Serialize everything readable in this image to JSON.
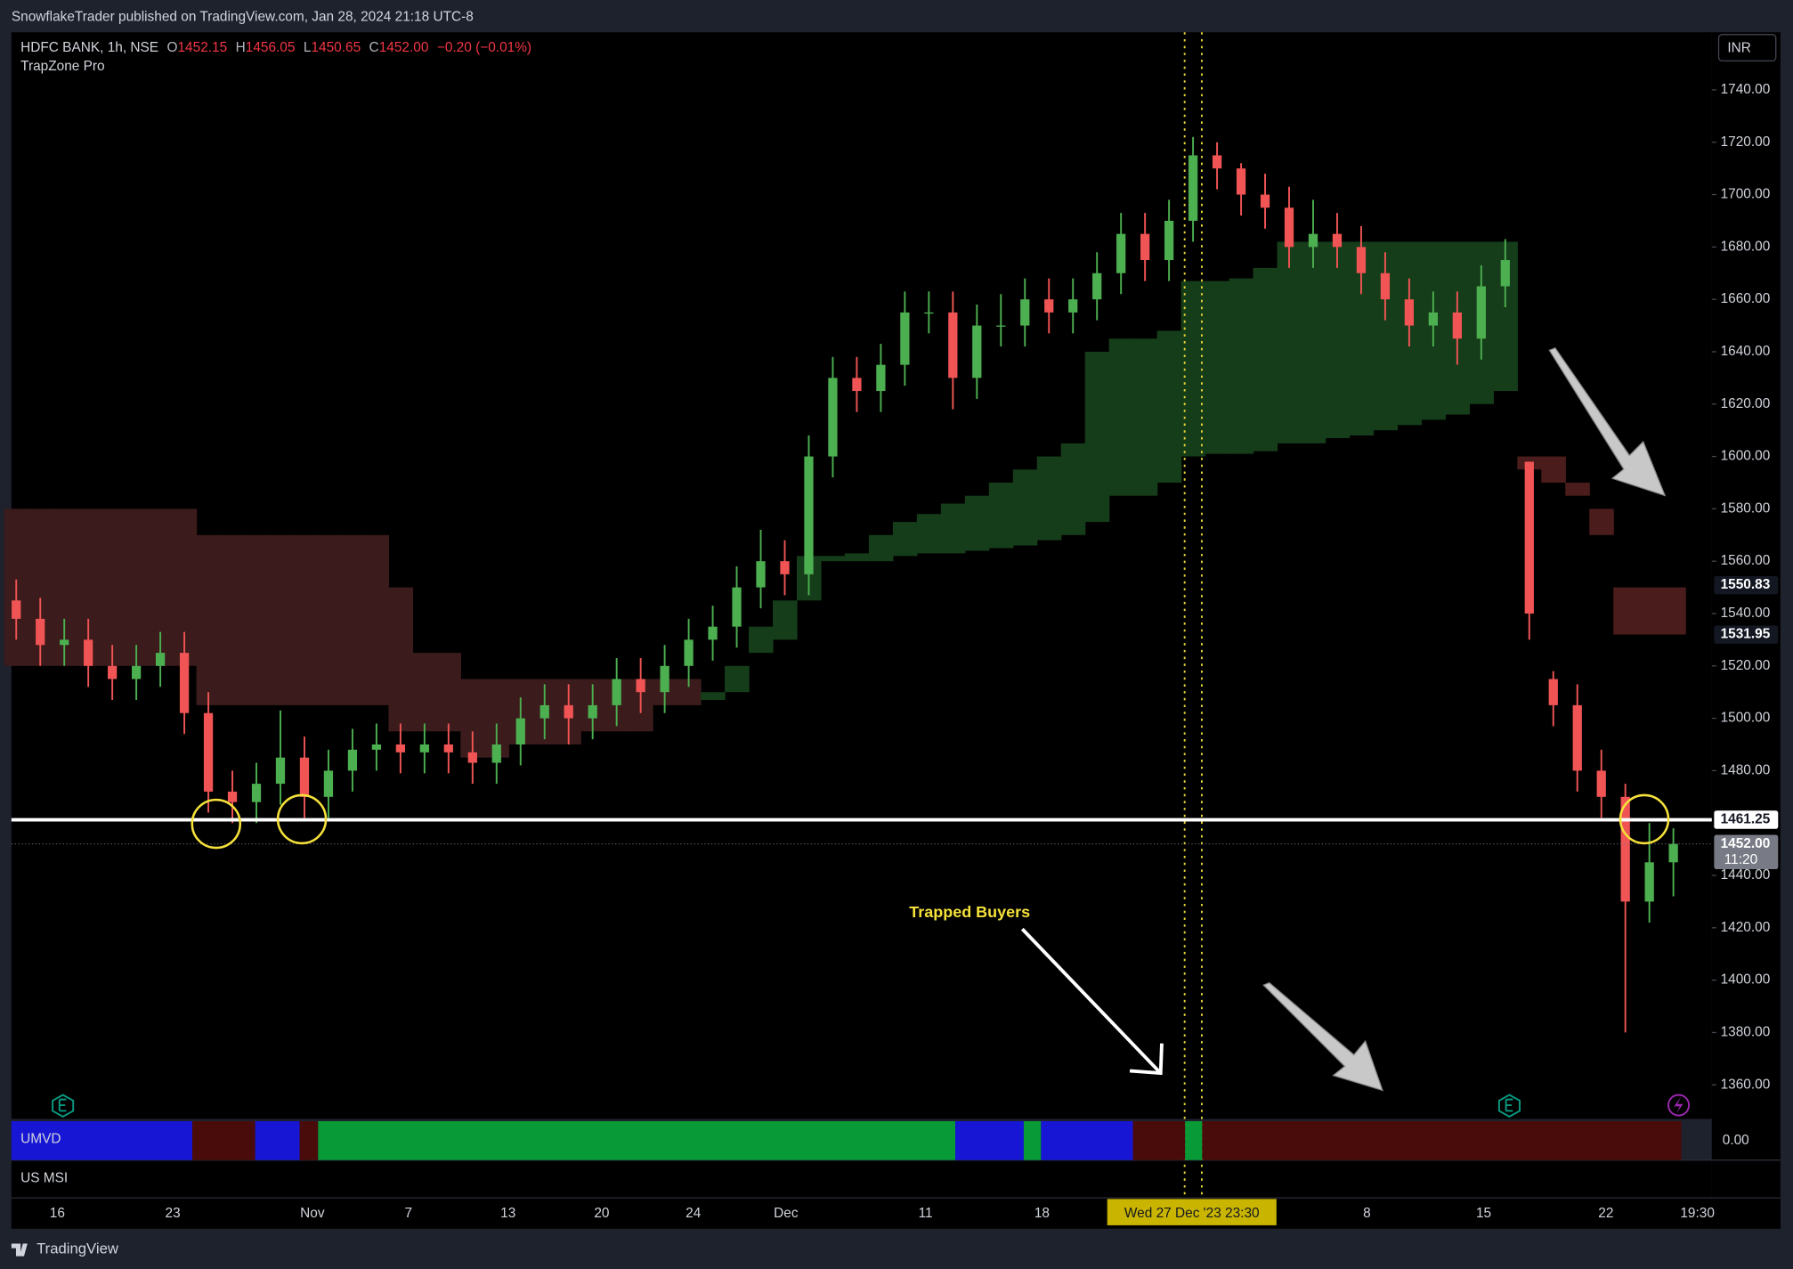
{
  "header": {
    "text": "SnowflakeTrader published on TradingView.com, Jan 28, 2024 21:18 UTC-8"
  },
  "chart_data": {
    "type": "candlestick",
    "legend": {
      "symbol": "HDFC BANK, 1h, NSE",
      "open_label": "O",
      "open": 1452.15,
      "high_label": "H",
      "high": 1456.05,
      "low_label": "L",
      "low": 1450.65,
      "close_label": "C",
      "close": {
        "value": 1452,
        "label": "1452.00"
      },
      "change": "−0.20 (−0.01%)",
      "indicator": "TrapZone Pro"
    },
    "currency": "INR",
    "colors": {
      "up": "#4caf50",
      "down": "#f05454"
    },
    "xlim": [
      -0.2,
      70.6
    ],
    "ylim": [
      1347,
      1762
    ],
    "grid": false,
    "xticks": [
      {
        "value": 1.71,
        "label": "16"
      },
      {
        "value": 6.52,
        "label": "23"
      },
      {
        "value": 12.33,
        "label": "Nov"
      },
      {
        "value": 16.33,
        "label": "7"
      },
      {
        "value": 20.48,
        "label": "13"
      },
      {
        "value": 24.38,
        "label": "20"
      },
      {
        "value": 28.19,
        "label": "24"
      },
      {
        "value": 32.05,
        "label": "Dec"
      },
      {
        "value": 37.86,
        "label": "11"
      },
      {
        "value": 42.71,
        "label": "18"
      },
      {
        "value": 56.24,
        "label": "8"
      },
      {
        "value": 61.1,
        "label": "15"
      },
      {
        "value": 66.19,
        "label": "22"
      },
      {
        "value": 70.0,
        "label": "19:30"
      }
    ],
    "cursor_tick": {
      "value": 48.95,
      "label": "Wed 27 Dec '23 23:30"
    },
    "yticks": [
      {
        "value": 1360,
        "label": "1360.00"
      },
      {
        "value": 1380,
        "label": "1380.00"
      },
      {
        "value": 1400,
        "label": "1400.00"
      },
      {
        "value": 1420,
        "label": "1420.00"
      },
      {
        "value": 1440,
        "label": "1440.00"
      },
      {
        "value": 1480,
        "label": "1480.00"
      },
      {
        "value": 1500,
        "label": "1500.00"
      },
      {
        "value": 1520,
        "label": "1520.00"
      },
      {
        "value": 1540,
        "label": "1540.00"
      },
      {
        "value": 1560,
        "label": "1560.00"
      },
      {
        "value": 1580,
        "label": "1580.00"
      },
      {
        "value": 1600,
        "label": "1600.00"
      },
      {
        "value": 1620,
        "label": "1620.00"
      },
      {
        "value": 1640,
        "label": "1640.00"
      },
      {
        "value": 1660,
        "label": "1660.00"
      },
      {
        "value": 1680,
        "label": "1680.00"
      },
      {
        "value": 1700,
        "label": "1700.00"
      },
      {
        "value": 1720,
        "label": "1720.00"
      },
      {
        "value": 1740,
        "label": "1740.00"
      }
    ],
    "open": [
      1545,
      1538,
      1528,
      1530,
      1520,
      1515,
      1520,
      1525,
      1502,
      1472,
      1468,
      1475,
      1485,
      1470,
      1480,
      1488,
      1490,
      1487,
      1490,
      1487,
      1483,
      1490,
      1500,
      1505,
      1500,
      1505,
      1515,
      1510,
      1520,
      1530,
      1535,
      1550,
      1560,
      1555,
      1600,
      1630,
      1625,
      1635,
      1655,
      1655,
      1630,
      1650,
      1650,
      1660,
      1655,
      1660,
      1670,
      1685,
      1675,
      1690,
      1715,
      1710,
      1700,
      1695,
      1680,
      1685,
      1680,
      1670,
      1660,
      1650,
      1655,
      1645,
      1665,
      1598,
      1515,
      1505,
      1480,
      1470,
      1430,
      1445
    ],
    "high": [
      1553,
      1546,
      1538,
      1538,
      1528,
      1528,
      1533,
      1533,
      1510,
      1480,
      1483,
      1503,
      1493,
      1488,
      1496,
      1498,
      1498,
      1498,
      1498,
      1495,
      1498,
      1508,
      1513,
      1513,
      1513,
      1523,
      1523,
      1528,
      1538,
      1543,
      1558,
      1572,
      1568,
      1608,
      1638,
      1638,
      1643,
      1663,
      1663,
      1663,
      1658,
      1662,
      1668,
      1668,
      1668,
      1678,
      1693,
      1693,
      1698,
      1722,
      1720,
      1712,
      1708,
      1703,
      1698,
      1693,
      1688,
      1678,
      1668,
      1663,
      1663,
      1673,
      1683,
      1598,
      1518,
      1513,
      1488,
      1475,
      1460,
      1458
    ],
    "low": [
      1530,
      1520,
      1520,
      1512,
      1507,
      1507,
      1512,
      1494,
      1464,
      1460,
      1460,
      1467,
      1462,
      1462,
      1472,
      1480,
      1479,
      1479,
      1479,
      1475,
      1475,
      1482,
      1492,
      1490,
      1492,
      1497,
      1502,
      1502,
      1512,
      1522,
      1527,
      1542,
      1547,
      1547,
      1592,
      1617,
      1617,
      1627,
      1647,
      1618,
      1622,
      1642,
      1642,
      1647,
      1647,
      1652,
      1662,
      1667,
      1667,
      1682,
      1702,
      1692,
      1687,
      1672,
      1672,
      1672,
      1662,
      1652,
      1642,
      1642,
      1635,
      1637,
      1657,
      1530,
      1497,
      1472,
      1462,
      1380,
      1422,
      1432
    ],
    "close": [
      1538,
      1528,
      1530,
      1520,
      1515,
      1520,
      1525,
      1502,
      1472,
      1468,
      1475,
      1485,
      1470,
      1480,
      1488,
      1490,
      1487,
      1490,
      1487,
      1483,
      1490,
      1500,
      1505,
      1500,
      1505,
      1515,
      1510,
      1520,
      1530,
      1535,
      1550,
      1560,
      1555,
      1600,
      1630,
      1625,
      1635,
      1655,
      1655,
      1630,
      1650,
      1650,
      1660,
      1655,
      1660,
      1670,
      1685,
      1675,
      1690,
      1715,
      1710,
      1700,
      1695,
      1680,
      1685,
      1680,
      1670,
      1660,
      1650,
      1655,
      1645,
      1665,
      1675,
      1540,
      1505,
      1480,
      1470,
      1430,
      1445,
      1452
    ],
    "zones": [
      {
        "color": "#3b1b1b",
        "start": 0,
        "upper": [
          1580,
          1580,
          1580,
          1580,
          1580,
          1580,
          1580,
          1580,
          1570,
          1570,
          1570,
          1570,
          1570,
          1570,
          1570,
          1570,
          1550,
          1525,
          1525,
          1515,
          1515,
          1515,
          1515,
          1515,
          1515,
          1515,
          1515,
          1515,
          1515
        ],
        "lower": [
          1520,
          1520,
          1520,
          1520,
          1520,
          1520,
          1520,
          1520,
          1505,
          1505,
          1505,
          1505,
          1505,
          1505,
          1505,
          1505,
          1495,
          1495,
          1495,
          1485,
          1485,
          1490,
          1490,
          1490,
          1495,
          1495,
          1495,
          1505,
          1505
        ]
      },
      {
        "color": "#153d19",
        "start": 29,
        "upper": [
          1510,
          1520,
          1535,
          1545,
          1562,
          1562,
          1563,
          1570,
          1575,
          1578,
          1582,
          1585,
          1590,
          1595,
          1600,
          1605,
          1640,
          1645,
          1645,
          1648,
          1667,
          1667,
          1668,
          1672,
          1682,
          1682,
          1682,
          1682,
          1682,
          1682,
          1682,
          1682,
          1682,
          1682
        ],
        "lower": [
          1507,
          1510,
          1525,
          1530,
          1545,
          1560,
          1560,
          1560,
          1562,
          1563,
          1563,
          1564,
          1565,
          1566,
          1568,
          1570,
          1575,
          1585,
          1585,
          1590,
          1600,
          1601,
          1601,
          1602,
          1605,
          1605,
          1607,
          1608,
          1610,
          1612,
          1614,
          1616,
          1620,
          1625
        ]
      },
      {
        "color": "#4a1c1c",
        "start": 63,
        "upper": [
          1600,
          1600,
          1590,
          1580,
          1550,
          1550,
          1550
        ],
        "lower": [
          1595,
          1590,
          1585,
          1570,
          1532,
          1532,
          1532
        ]
      }
    ],
    "level": 1461.25,
    "price_tags": [
      1550.83,
      1531.95
    ],
    "last_price": {
      "value": 1452,
      "label": "1452.00"
    },
    "countdown": "11:20",
    "annotation": "Trapped Buyers"
  },
  "indicators": {
    "umvd": {
      "name": "UMVD",
      "value": {
        "value": 0,
        "label": "0.00"
      },
      "runs": [
        {
          "color": "#1616d4",
          "span": [
            -0.2,
            7.33
          ]
        },
        {
          "color": "#4a0b0b",
          "span": [
            7.33,
            9.95
          ]
        },
        {
          "color": "#1616d4",
          "span": [
            9.95,
            11.8
          ]
        },
        {
          "color": "#4a0b0b",
          "span": [
            11.8,
            12.57
          ]
        },
        {
          "color": "#089a37",
          "span": [
            12.57,
            39.1
          ]
        },
        {
          "color": "#1616d4",
          "span": [
            39.1,
            41.95
          ]
        },
        {
          "color": "#089a37",
          "span": [
            41.95,
            42.67
          ]
        },
        {
          "color": "#1616d4",
          "span": [
            42.67,
            46.5
          ]
        },
        {
          "color": "#4a0b0b",
          "span": [
            46.5,
            48.67
          ]
        },
        {
          "color": "#089a37",
          "span": [
            48.67,
            49.38
          ]
        },
        {
          "color": "#4a0b0b",
          "span": [
            49.38,
            69.33
          ]
        }
      ]
    },
    "msi": {
      "name": "US MSI"
    }
  },
  "footer": {
    "brand": "TradingView"
  }
}
